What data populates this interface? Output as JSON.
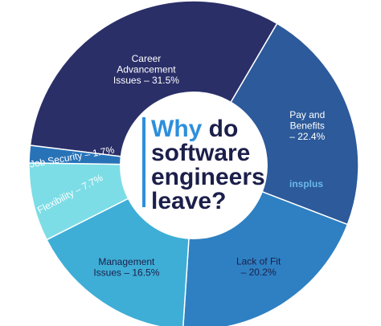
{
  "chart_data": {
    "type": "pie",
    "style": "donut",
    "title_lines": [
      {
        "accent": "Why",
        "rest": " do"
      },
      {
        "accent": "",
        "rest": "software"
      },
      {
        "accent": "",
        "rest": "engineers"
      },
      {
        "accent": "",
        "rest": "leave?"
      }
    ],
    "slices": [
      {
        "label_lines": [
          "Career",
          "Advancement",
          "Issues – 31.5%"
        ],
        "value": 31.5,
        "color": "#2a2f68",
        "text_color": "#ffffff"
      },
      {
        "label_lines": [
          "Pay and",
          "Benefits",
          "– 22.4%"
        ],
        "value": 22.4,
        "color": "#2c5a9a",
        "text_color": "#ffffff"
      },
      {
        "label_lines": [
          "Lack of Fit",
          "– 20.2%"
        ],
        "value": 20.2,
        "color": "#2e80c2",
        "text_color": "#1c1f4a"
      },
      {
        "label_lines": [
          "Management",
          "Issues – 16.5%"
        ],
        "value": 16.5,
        "color": "#3eaed6",
        "text_color": "#1c1f4a"
      },
      {
        "label_lines": [
          "Flexibility – 7.7%"
        ],
        "value": 7.7,
        "color": "#7ddde6",
        "text_color": "#ffffff"
      },
      {
        "label_lines": [
          "Job Security – 1.7%"
        ],
        "value": 1.7,
        "color": "#2873b8",
        "text_color": "#ffffff"
      }
    ],
    "legend": "none"
  },
  "brand": {
    "text": "insplus",
    "color": "#6ab8ea"
  },
  "colors": {
    "accent": "#2d8fdc",
    "center_bg": "#ffffff",
    "title": "#1c1f4a"
  }
}
